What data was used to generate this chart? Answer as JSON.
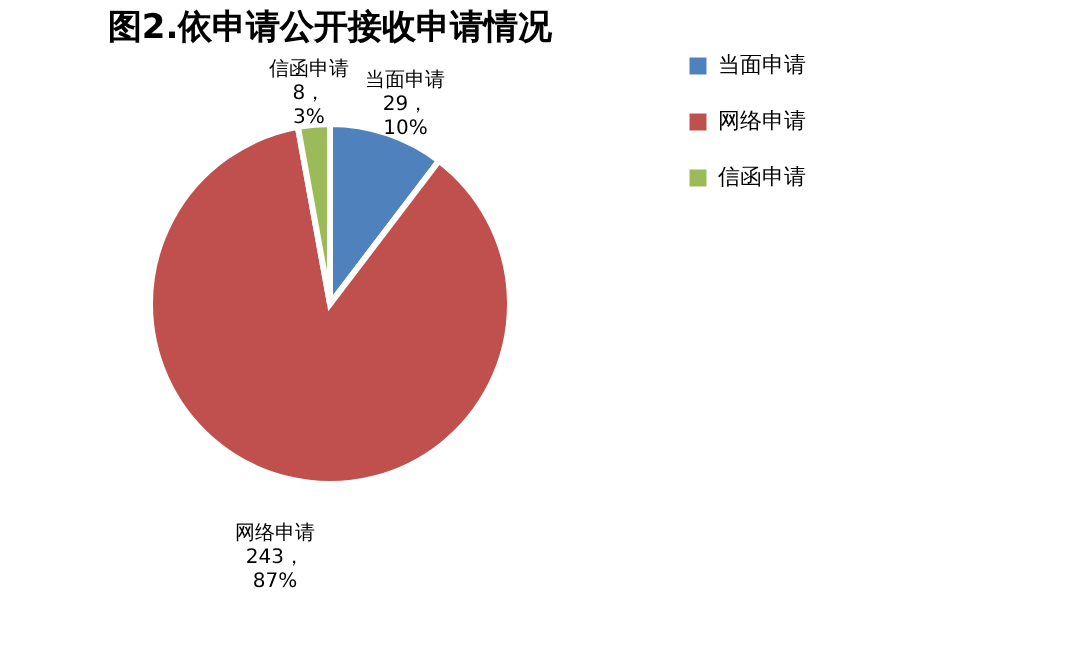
{
  "chart_data": {
    "type": "pie",
    "title": "图2.依申请公开接收申请情况",
    "categories": [
      "当面申请",
      "网络申请",
      "信函申请"
    ],
    "values": [
      29,
      243,
      8
    ],
    "colors": [
      "#4f81bd",
      "#c0504d",
      "#9bbb59"
    ],
    "value_labels": [
      "29，\n10%",
      "243，\n87%",
      "8，\n3%"
    ],
    "legend": "right"
  }
}
